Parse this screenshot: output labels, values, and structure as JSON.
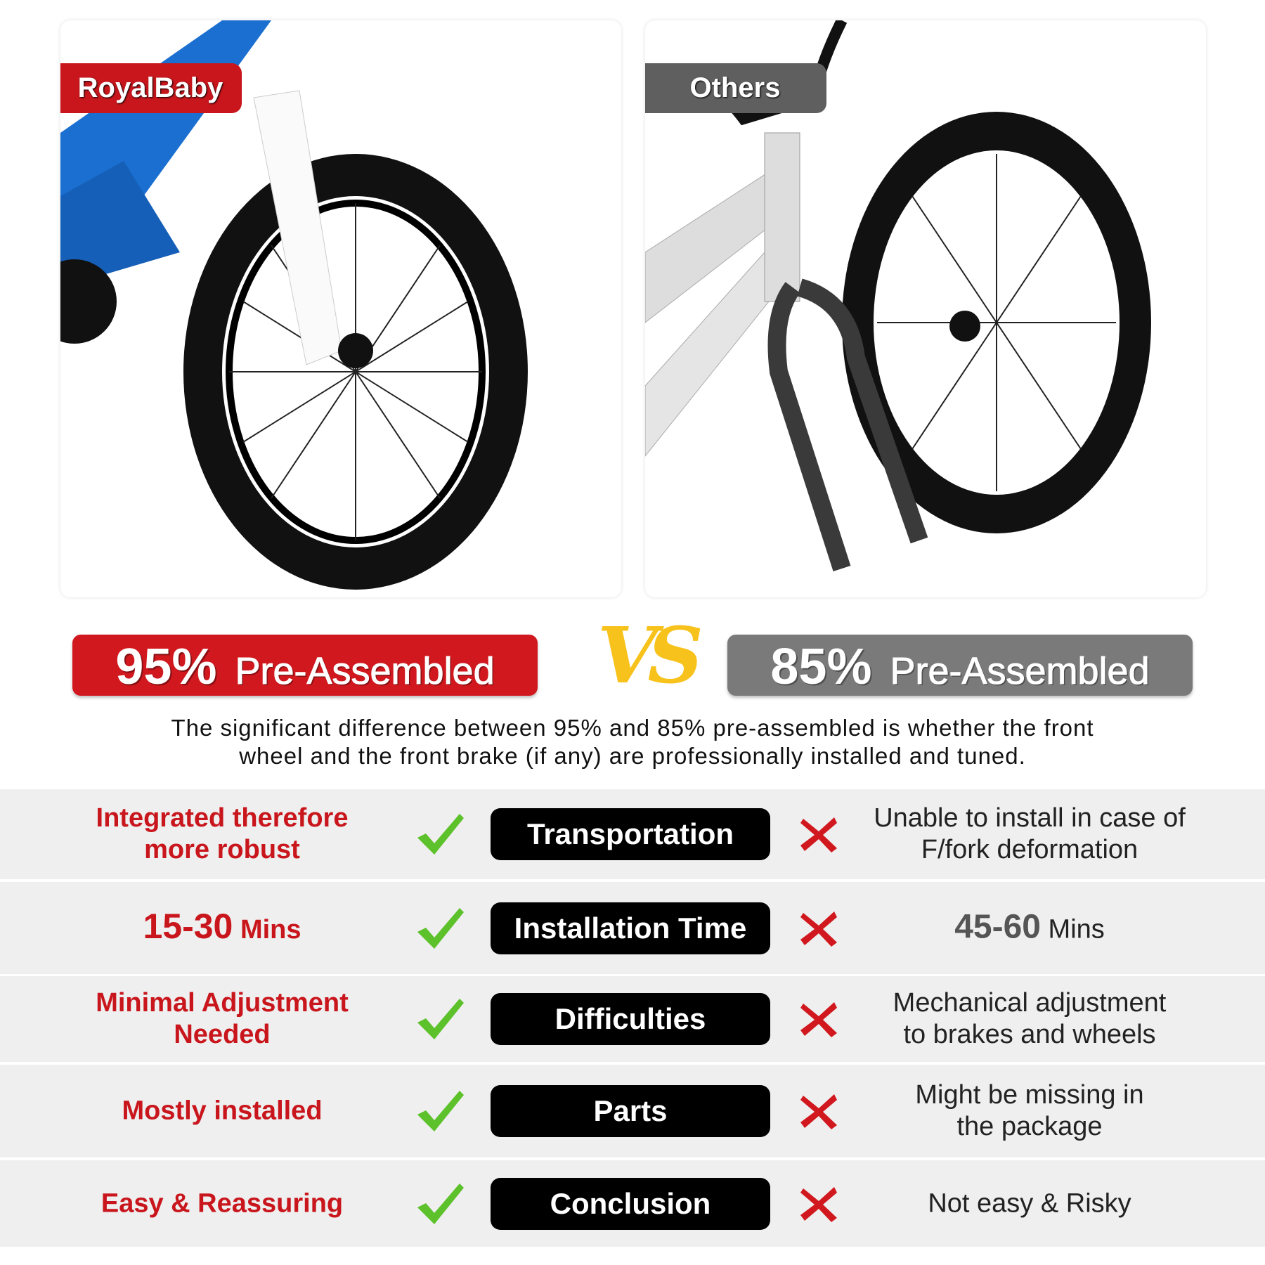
{
  "left_panel": {
    "tag": "RoyalBaby",
    "tag_color": "#c8161c",
    "bike_color": "#1a6fd0"
  },
  "right_panel": {
    "tag": "Others",
    "tag_color": "#5f5f5f",
    "bike_color": "#d8d8d8"
  },
  "banners": {
    "left": {
      "percent": "95%",
      "label": "Pre-Assembled",
      "color": "#d0181e"
    },
    "vs": "VS",
    "right": {
      "percent": "85%",
      "label": "Pre-Assembled",
      "color": "#7a7a7a"
    }
  },
  "description": [
    "The significant difference between 95% and 85% pre-assembled is whether the front",
    "wheel and the front brake (if any) are professionally installed and tuned."
  ],
  "rows": [
    {
      "left": [
        "Integrated therefore",
        "more robust"
      ],
      "category": "Transportation",
      "right": [
        "Unable to install in case of",
        "F/fork deformation"
      ]
    },
    {
      "left_big": "15-30",
      "left_unit": "Mins",
      "category": "Installation Time",
      "right_big": "45-60",
      "right_unit": "Mins"
    },
    {
      "left": [
        "Minimal Adjustment",
        "Needed"
      ],
      "category": "Difficulties",
      "right": [
        "Mechanical adjustment",
        "to brakes and wheels"
      ]
    },
    {
      "left": [
        "Mostly installed"
      ],
      "category": "Parts",
      "right": [
        "Might be missing in",
        "the package"
      ]
    },
    {
      "left": [
        "Easy & Reassuring"
      ],
      "category": "Conclusion",
      "right": [
        "Not easy & Risky"
      ]
    }
  ],
  "icons": {
    "check": "check-icon",
    "check_color": "#5cc12a",
    "cross": "cross-icon",
    "cross_color": "#d0181e"
  }
}
